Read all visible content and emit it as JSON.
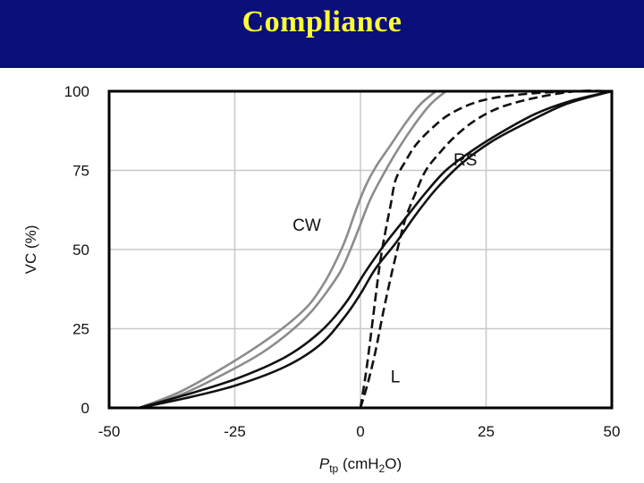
{
  "slide": {
    "title": "Compliance"
  },
  "colors": {
    "banner": "#0b0f7a",
    "title": "#ffff33",
    "lung": "#111111",
    "respiratory_system": "#111111",
    "chest_wall": "#8c8c8c",
    "grid": "#c8c8c8"
  },
  "chart_data": {
    "type": "line",
    "xlabel_main": "P",
    "xlabel_sub": "tp",
    "xlabel_rest": " (cmH",
    "xlabel_sub2": "2",
    "xlabel_end": "O)",
    "ylabel": "VC (%)",
    "xlim": [
      -50,
      50
    ],
    "ylim": [
      0,
      100
    ],
    "xticks": [
      "-50",
      "-25",
      "0",
      "25",
      "50"
    ],
    "yticks": [
      "0",
      "25",
      "50",
      "75",
      "100"
    ],
    "grid": true,
    "series": [
      {
        "name": "CW",
        "style": "solid",
        "color": "#8c8c8c",
        "x": [
          -44,
          -36,
          -28,
          -20,
          -14,
          -10,
          -7,
          -5,
          -3,
          -1,
          1,
          3,
          6,
          9,
          12,
          15
        ],
        "y": [
          0,
          5,
          12,
          20,
          27,
          33,
          40,
          46,
          53,
          62,
          70,
          76,
          83,
          90,
          96,
          100
        ]
      },
      {
        "name": "",
        "style": "solid",
        "color": "#8c8c8c",
        "x": [
          -44,
          -36,
          -28,
          -20,
          -14,
          -10,
          -7,
          -4,
          -2,
          0,
          2,
          5,
          8,
          11,
          14,
          17
        ],
        "y": [
          0,
          4,
          10,
          17,
          24,
          30,
          36,
          43,
          50,
          58,
          66,
          75,
          83,
          90,
          96,
          100
        ]
      },
      {
        "name": "RS",
        "style": "solid",
        "color": "#111111",
        "x": [
          -44,
          -35,
          -25,
          -15,
          -8,
          -3,
          1,
          5,
          9,
          13,
          17,
          22,
          28,
          35,
          42,
          50
        ],
        "y": [
          0,
          4,
          9,
          16,
          24,
          33,
          43,
          52,
          60,
          68,
          75,
          81,
          87,
          93,
          97,
          100
        ]
      },
      {
        "name": "",
        "style": "solid",
        "color": "#111111",
        "x": [
          -44,
          -35,
          -25,
          -15,
          -8,
          -3,
          0,
          3,
          7,
          11,
          15,
          20,
          26,
          33,
          41,
          50
        ],
        "y": [
          0,
          3,
          7,
          13,
          20,
          29,
          36,
          44,
          52,
          61,
          69,
          77,
          84,
          90,
          96,
          100
        ]
      },
      {
        "name": "L",
        "style": "dashed",
        "color": "#111111",
        "x": [
          0,
          1,
          2,
          3,
          4,
          5,
          6,
          7,
          9,
          11,
          14,
          18,
          24,
          32,
          42,
          50
        ],
        "y": [
          0,
          10,
          22,
          35,
          47,
          56,
          64,
          72,
          78,
          83,
          88,
          93,
          97,
          99,
          100,
          100
        ]
      },
      {
        "name": "",
        "style": "dashed",
        "color": "#111111",
        "x": [
          0,
          1.5,
          3,
          4.5,
          6,
          7.5,
          9,
          11,
          13,
          16,
          19,
          23,
          28,
          35,
          43,
          50
        ],
        "y": [
          0,
          8,
          18,
          30,
          41,
          51,
          60,
          68,
          75,
          81,
          86,
          91,
          95,
          98,
          100,
          100
        ]
      }
    ],
    "labels": [
      {
        "text": "CW",
        "x": -13.5,
        "y": 56
      },
      {
        "text": "RS",
        "x": 18.5,
        "y": 76.5
      },
      {
        "text": "L",
        "x": 6,
        "y": 8
      }
    ]
  }
}
